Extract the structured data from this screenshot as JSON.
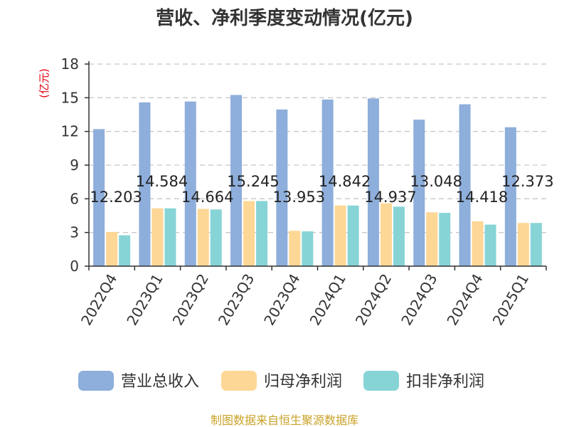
{
  "chart_data": {
    "type": "bar",
    "title": "营收、净利季度变动情况(亿元)",
    "ylabel": "(亿元)",
    "xlabel": "",
    "ylim": [
      0,
      18
    ],
    "yticks": [
      "0",
      "3",
      "6",
      "9",
      "12",
      "15",
      "18"
    ],
    "grid": true,
    "legend_placement": "bottom",
    "categories": [
      "2022Q4",
      "2023Q1",
      "2023Q2",
      "2023Q3",
      "2023Q4",
      "2024Q1",
      "2024Q2",
      "2024Q3",
      "2024Q4",
      "2025Q1"
    ],
    "series": [
      {
        "name": "营业总收入",
        "color": "#8eaedb",
        "values": [
          12.203,
          14.584,
          14.664,
          15.245,
          13.953,
          14.842,
          14.937,
          13.048,
          14.418,
          12.373
        ]
      },
      {
        "name": "归母净利润",
        "color": "#fdd795",
        "values": [
          3.05,
          5.15,
          5.1,
          5.8,
          3.15,
          5.4,
          5.6,
          4.8,
          4.0,
          3.85
        ]
      },
      {
        "name": "扣非净利润",
        "color": "#87d4d6",
        "values": [
          2.75,
          5.15,
          5.05,
          5.8,
          3.1,
          5.4,
          5.3,
          4.75,
          3.7,
          3.85
        ]
      }
    ],
    "data_labels": [
      "12.203",
      "14.584",
      "14.664",
      "15.245",
      "13.953",
      "14.842",
      "14.937",
      "13.048",
      "14.418",
      "12.373"
    ]
  },
  "source": "制图数据来自恒生聚源数据库"
}
